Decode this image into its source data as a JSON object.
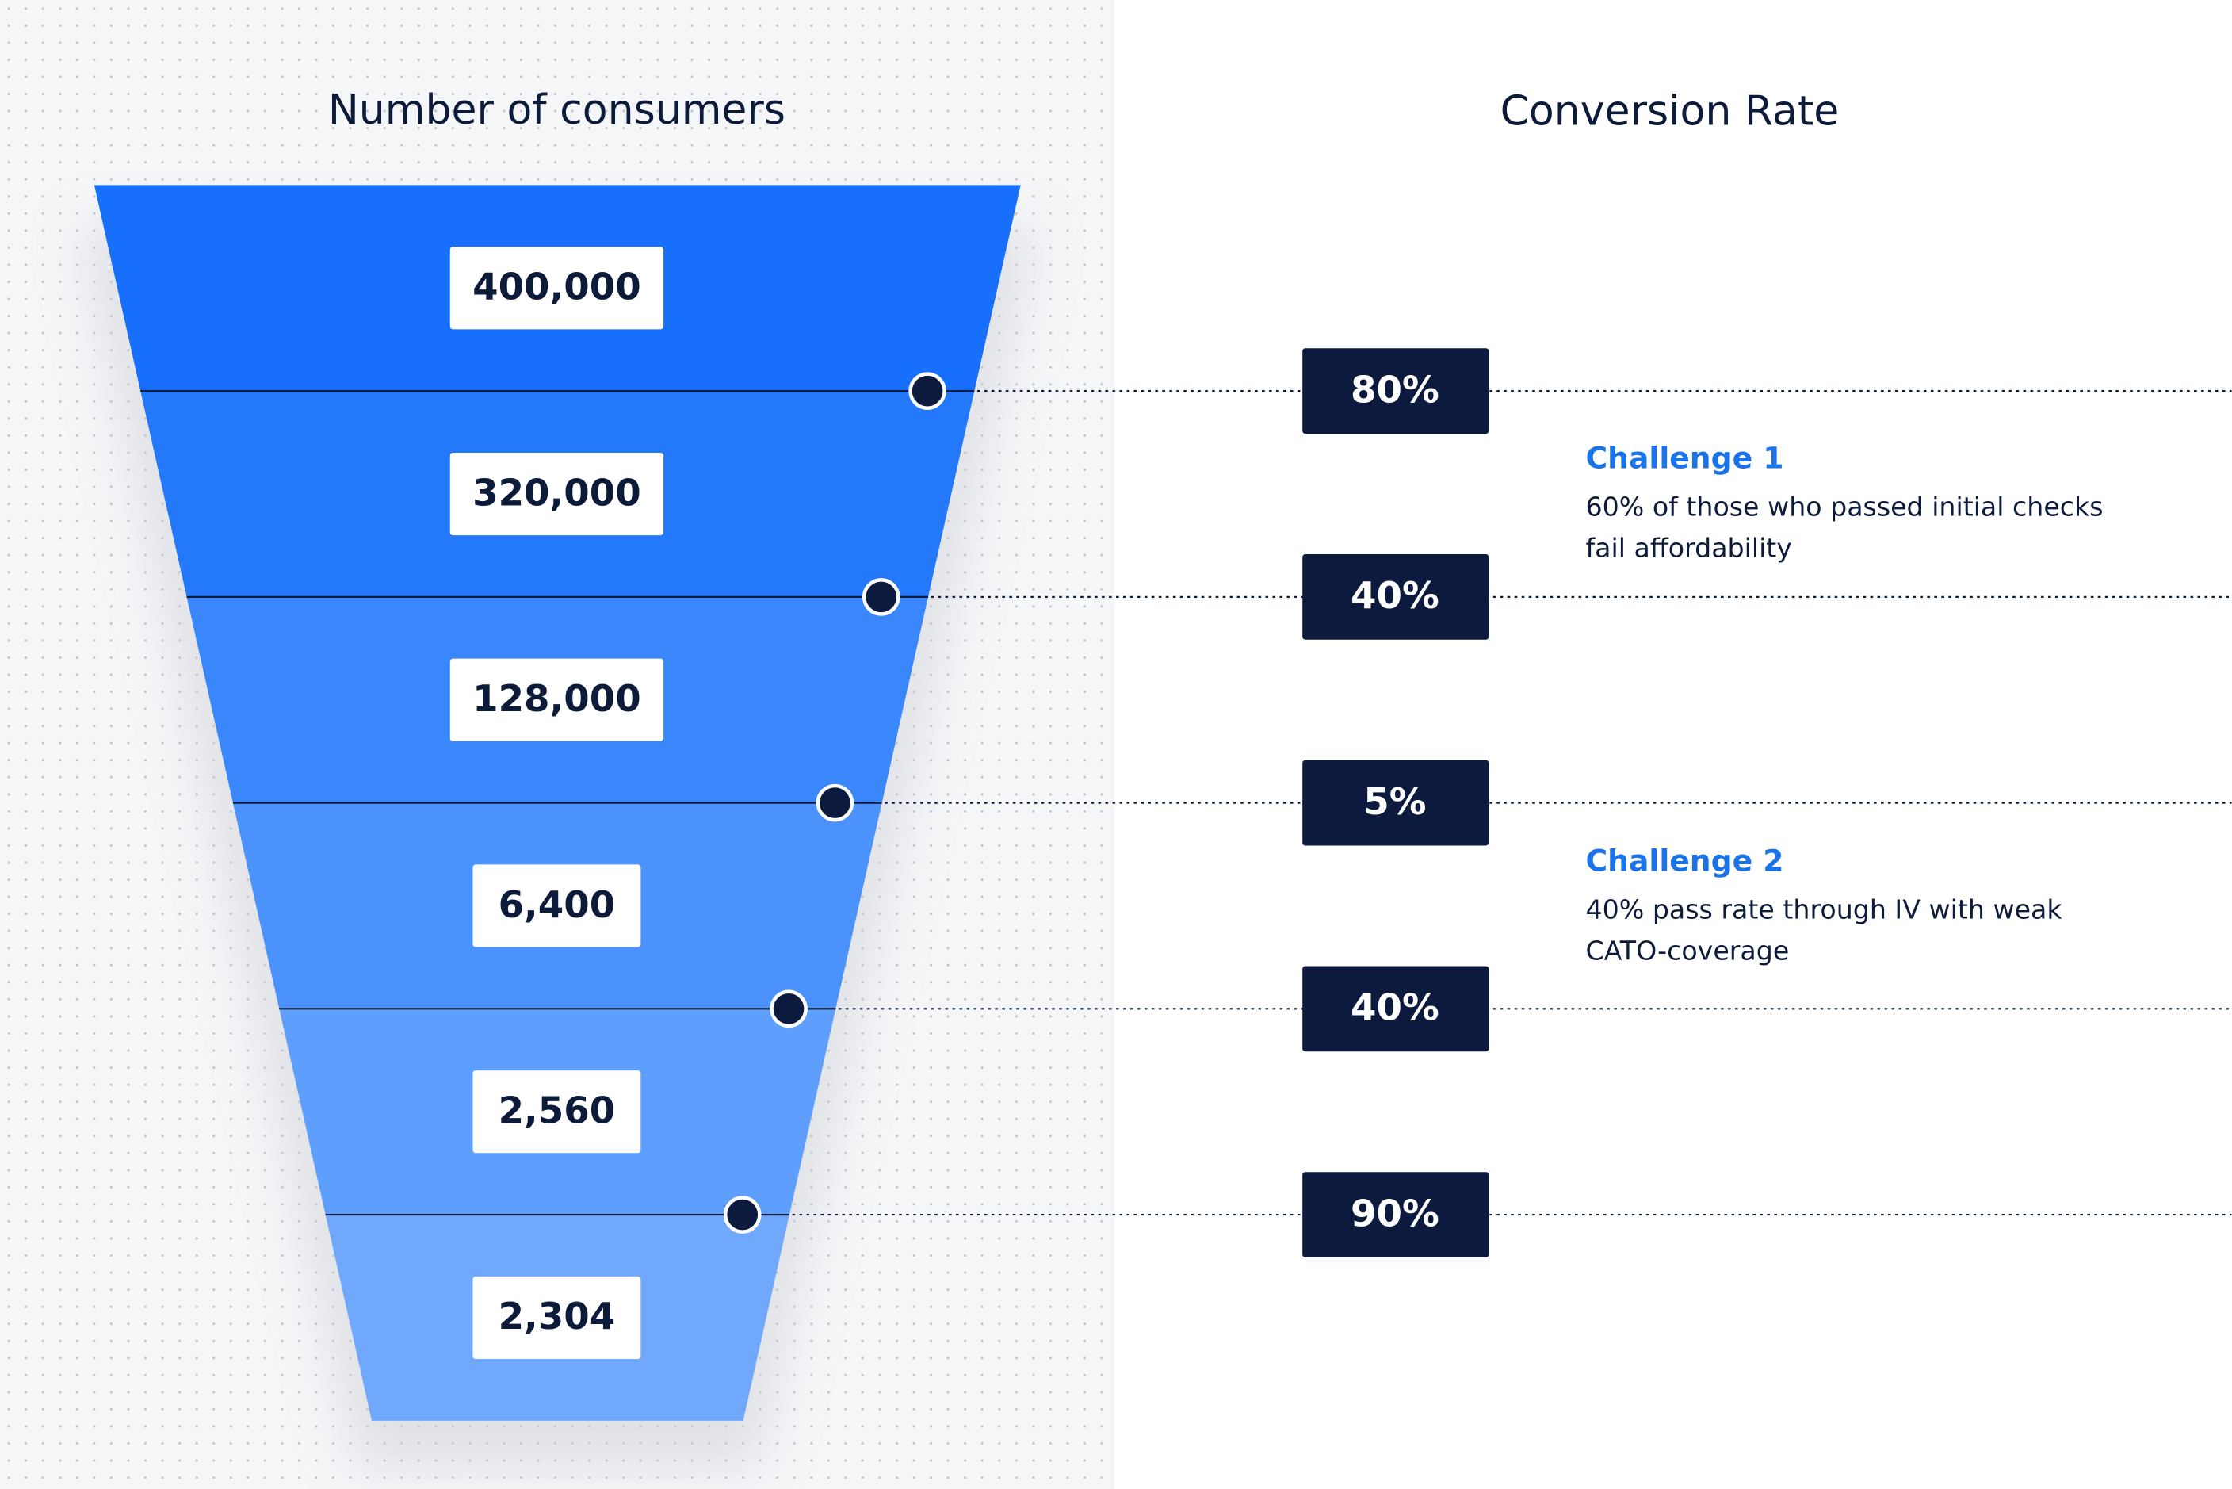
{
  "chart_data": {
    "type": "funnel",
    "title": "Number of consumers",
    "rate_title": "Conversion Rate",
    "categories": [
      null,
      null,
      null,
      null,
      null,
      null
    ],
    "values": [
      400000,
      320000,
      128000,
      6400,
      2560,
      2304
    ],
    "value_labels": [
      "400,000",
      "320,000",
      "128,000",
      "6,400",
      "2,560",
      "2,304"
    ],
    "colors": [
      "#176ffb",
      "#2479fb",
      "#3a87fb",
      "#4b92fc",
      "#5e9efc",
      "#70a9fc"
    ],
    "rates": [
      80,
      40,
      5,
      40,
      90
    ],
    "rate_labels": [
      "80%",
      "40%",
      "5%",
      "40%",
      "90%"
    ],
    "rate_color": "#0b1a3d",
    "annotations": [
      {
        "title": "Challenge 1",
        "lines": [
          "60% of those who passed initial checks",
          "fail affordability"
        ]
      },
      {
        "title": "Challenge 2",
        "lines": [
          "40% pass rate through IV with weak",
          "CATO-coverage"
        ]
      }
    ],
    "annotation_color": "#1a73e8"
  }
}
